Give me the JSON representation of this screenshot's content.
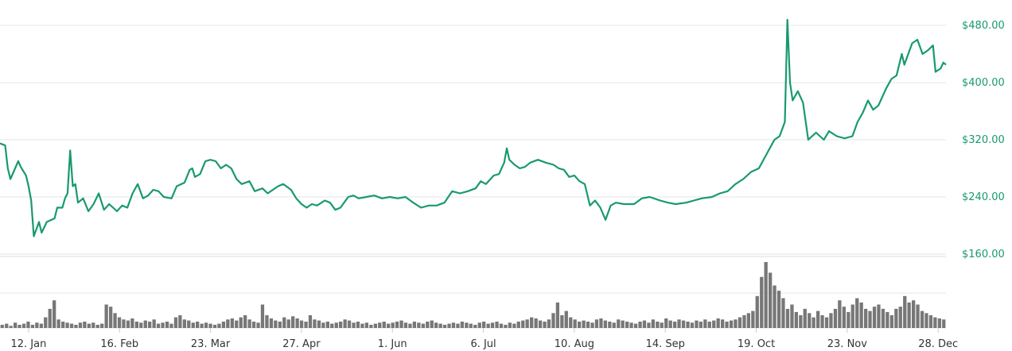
{
  "chart_data": [
    {
      "type": "line",
      "title": "",
      "xlabel": "",
      "ylabel": "",
      "ylim": [
        160,
        480
      ],
      "yticks": [
        "$160.00",
        "$240.00",
        "$320.00",
        "$400.00",
        "$480.00"
      ],
      "yticks_values": [
        160,
        240,
        320,
        400,
        480
      ],
      "xticks": [
        "12. Jan",
        "16. Feb",
        "23. Mar",
        "27. Apr",
        "1. Jun",
        "6. Jul",
        "10. Aug",
        "14. Sep",
        "19. Oct",
        "23. Nov",
        "28. Dec"
      ],
      "grid": true,
      "color": "#189a6c",
      "series": [
        {
          "name": "",
          "points": [
            [
              "Jan 1",
              315
            ],
            [
              "Jan 3",
              312
            ],
            [
              "Jan 4",
              280
            ],
            [
              "Jan 5",
              265
            ],
            [
              "Jan 8",
              290
            ],
            [
              "Jan 9",
              282
            ],
            [
              "Jan 11",
              270
            ],
            [
              "Jan 12",
              255
            ],
            [
              "Jan 13",
              235
            ],
            [
              "Jan 14",
              185
            ],
            [
              "Jan 16",
              205
            ],
            [
              "Jan 17",
              190
            ],
            [
              "Jan 19",
              205
            ],
            [
              "Jan 22",
              210
            ],
            [
              "Jan 23",
              225
            ],
            [
              "Jan 25",
              225
            ],
            [
              "Jan 26",
              238
            ],
            [
              "Jan 27",
              245
            ],
            [
              "Jan 28",
              305
            ],
            [
              "Jan 29",
              255
            ],
            [
              "Jan 30",
              258
            ],
            [
              "Jan 31",
              232
            ],
            [
              "Feb 2",
              238
            ],
            [
              "Feb 4",
              220
            ],
            [
              "Feb 6",
              230
            ],
            [
              "Feb 8",
              245
            ],
            [
              "Feb 10",
              222
            ],
            [
              "Feb 12",
              230
            ],
            [
              "Feb 15",
              220
            ],
            [
              "Feb 17",
              228
            ],
            [
              "Feb 19",
              225
            ],
            [
              "Feb 21",
              245
            ],
            [
              "Feb 23",
              258
            ],
            [
              "Feb 25",
              238
            ],
            [
              "Feb 27",
              242
            ],
            [
              "Mar 1",
              250
            ],
            [
              "Mar 3",
              248
            ],
            [
              "Mar 5",
              240
            ],
            [
              "Mar 8",
              238
            ],
            [
              "Mar 10",
              255
            ],
            [
              "Mar 13",
              260
            ],
            [
              "Mar 15",
              278
            ],
            [
              "Mar 16",
              280
            ],
            [
              "Mar 17",
              268
            ],
            [
              "Mar 19",
              272
            ],
            [
              "Mar 21",
              290
            ],
            [
              "Mar 23",
              292
            ],
            [
              "Mar 25",
              290
            ],
            [
              "Mar 27",
              280
            ],
            [
              "Mar 29",
              285
            ],
            [
              "Mar 31",
              280
            ],
            [
              "Apr 2",
              265
            ],
            [
              "Apr 4",
              258
            ],
            [
              "Apr 7",
              262
            ],
            [
              "Apr 9",
              248
            ],
            [
              "Apr 12",
              252
            ],
            [
              "Apr 14",
              245
            ],
            [
              "Apr 16",
              250
            ],
            [
              "Apr 18",
              255
            ],
            [
              "Apr 20",
              258
            ],
            [
              "Apr 23",
              250
            ],
            [
              "Apr 25",
              238
            ],
            [
              "Apr 27",
              230
            ],
            [
              "Apr 29",
              225
            ],
            [
              "May 1",
              230
            ],
            [
              "May 3",
              228
            ],
            [
              "May 6",
              235
            ],
            [
              "May 8",
              232
            ],
            [
              "May 10",
              222
            ],
            [
              "May 12",
              225
            ],
            [
              "May 15",
              240
            ],
            [
              "May 17",
              242
            ],
            [
              "May 19",
              238
            ],
            [
              "May 22",
              240
            ],
            [
              "May 25",
              242
            ],
            [
              "May 28",
              238
            ],
            [
              "May 31",
              240
            ],
            [
              "Jun 3",
              238
            ],
            [
              "Jun 6",
              240
            ],
            [
              "Jun 9",
              232
            ],
            [
              "Jun 12",
              225
            ],
            [
              "Jun 15",
              228
            ],
            [
              "Jun 18",
              228
            ],
            [
              "Jun 21",
              232
            ],
            [
              "Jun 24",
              248
            ],
            [
              "Jun 27",
              245
            ],
            [
              "Jun 30",
              248
            ],
            [
              "Jul 3",
              252
            ],
            [
              "Jul 5",
              262
            ],
            [
              "Jul 7",
              258
            ],
            [
              "Jul 10",
              270
            ],
            [
              "Jul 12",
              272
            ],
            [
              "Jul 14",
              288
            ],
            [
              "Jul 15",
              308
            ],
            [
              "Jul 16",
              292
            ],
            [
              "Jul 18",
              285
            ],
            [
              "Jul 20",
              280
            ],
            [
              "Jul 22",
              282
            ],
            [
              "Jul 24",
              288
            ],
            [
              "Jul 27",
              292
            ],
            [
              "Jul 30",
              288
            ],
            [
              "Aug 2",
              285
            ],
            [
              "Aug 4",
              280
            ],
            [
              "Aug 6",
              278
            ],
            [
              "Aug 8",
              268
            ],
            [
              "Aug 10",
              270
            ],
            [
              "Aug 12",
              262
            ],
            [
              "Aug 14",
              258
            ],
            [
              "Aug 16",
              228
            ],
            [
              "Aug 18",
              235
            ],
            [
              "Aug 20",
              225
            ],
            [
              "Aug 22",
              208
            ],
            [
              "Aug 24",
              228
            ],
            [
              "Aug 26",
              232
            ],
            [
              "Aug 29",
              230
            ],
            [
              "Sep 2",
              230
            ],
            [
              "Sep 5",
              238
            ],
            [
              "Sep 8",
              240
            ],
            [
              "Sep 12",
              235
            ],
            [
              "Sep 15",
              232
            ],
            [
              "Sep 18",
              230
            ],
            [
              "Sep 22",
              232
            ],
            [
              "Sep 25",
              235
            ],
            [
              "Sep 28",
              238
            ],
            [
              "Oct 2",
              240
            ],
            [
              "Oct 5",
              245
            ],
            [
              "Oct 8",
              248
            ],
            [
              "Oct 11",
              258
            ],
            [
              "Oct 14",
              265
            ],
            [
              "Oct 17",
              275
            ],
            [
              "Oct 20",
              280
            ],
            [
              "Oct 23",
              300
            ],
            [
              "Oct 26",
              320
            ],
            [
              "Oct 28",
              325
            ],
            [
              "Oct 30",
              345
            ],
            [
              "Oct 31",
              488
            ],
            [
              "Nov 1",
              400
            ],
            [
              "Nov 2",
              375
            ],
            [
              "Nov 4",
              388
            ],
            [
              "Nov 6",
              372
            ],
            [
              "Nov 8",
              320
            ],
            [
              "Nov 11",
              330
            ],
            [
              "Nov 14",
              320
            ],
            [
              "Nov 16",
              332
            ],
            [
              "Nov 19",
              325
            ],
            [
              "Nov 22",
              322
            ],
            [
              "Nov 25",
              325
            ],
            [
              "Nov 27",
              345
            ],
            [
              "Nov 29",
              358
            ],
            [
              "Dec 1",
              375
            ],
            [
              "Dec 3",
              362
            ],
            [
              "Dec 5",
              368
            ],
            [
              "Dec 8",
              392
            ],
            [
              "Dec 10",
              405
            ],
            [
              "Dec 12",
              410
            ],
            [
              "Dec 14",
              440
            ],
            [
              "Dec 15",
              425
            ],
            [
              "Dec 18",
              455
            ],
            [
              "Dec 20",
              460
            ],
            [
              "Dec 22",
              440
            ],
            [
              "Dec 24",
              445
            ],
            [
              "Dec 26",
              452
            ],
            [
              "Dec 27",
              415
            ],
            [
              "Dec 29",
              420
            ],
            [
              "Dec 30",
              428
            ],
            [
              "Dec 31",
              425
            ]
          ]
        }
      ]
    },
    {
      "type": "bar",
      "title": "",
      "xlabel": "",
      "ylabel": "",
      "color": "#777777",
      "note_units": "relative volume",
      "values": [
        3,
        4,
        2,
        5,
        3,
        4,
        6,
        3,
        5,
        4,
        10,
        18,
        26,
        8,
        6,
        5,
        4,
        3,
        5,
        6,
        4,
        5,
        3,
        4,
        22,
        20,
        14,
        10,
        8,
        7,
        9,
        6,
        5,
        7,
        6,
        8,
        4,
        5,
        6,
        4,
        10,
        12,
        8,
        7,
        5,
        6,
        4,
        5,
        4,
        3,
        4,
        6,
        8,
        9,
        7,
        10,
        12,
        8,
        6,
        5,
        22,
        12,
        9,
        7,
        6,
        10,
        8,
        11,
        9,
        7,
        6,
        12,
        8,
        7,
        5,
        6,
        4,
        5,
        6,
        8,
        7,
        5,
        6,
        4,
        5,
        3,
        4,
        5,
        6,
        4,
        5,
        6,
        7,
        5,
        4,
        6,
        5,
        4,
        6,
        7,
        5,
        4,
        3,
        4,
        5,
        4,
        6,
        5,
        4,
        3,
        5,
        6,
        4,
        5,
        6,
        4,
        3,
        5,
        4,
        6,
        7,
        8,
        10,
        9,
        7,
        6,
        8,
        14,
        24,
        12,
        16,
        10,
        8,
        6,
        7,
        6,
        5,
        8,
        9,
        7,
        6,
        5,
        8,
        7,
        6,
        5,
        4,
        6,
        7,
        5,
        8,
        6,
        5,
        9,
        7,
        6,
        8,
        7,
        6,
        5,
        7,
        6,
        8,
        6,
        7,
        9,
        8,
        6,
        7,
        8,
        10,
        12,
        14,
        16,
        30,
        48,
        62,
        52,
        40,
        35,
        28,
        18,
        22,
        15,
        12,
        18,
        14,
        10,
        16,
        12,
        10,
        14,
        18,
        26,
        20,
        15,
        22,
        28,
        24,
        18,
        16,
        20,
        22,
        18,
        15,
        12,
        18,
        20,
        30,
        24,
        26,
        22,
        16,
        14,
        12,
        10,
        9,
        8
      ]
    }
  ]
}
